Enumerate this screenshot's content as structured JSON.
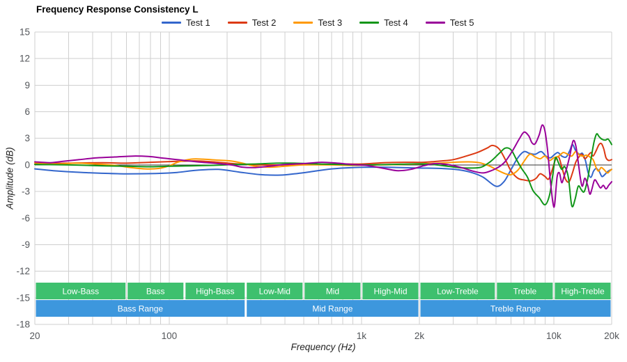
{
  "header": {
    "title": "Frequency Response Consistency L"
  },
  "axes": {
    "x": {
      "label": "Frequency (Hz)",
      "scale": "log",
      "min": 20,
      "max": 20000,
      "tick_labels": [
        {
          "value": 20,
          "text": "20"
        },
        {
          "value": 100,
          "text": "100"
        },
        {
          "value": 1000,
          "text": "1k"
        },
        {
          "value": 2000,
          "text": "2k"
        },
        {
          "value": 10000,
          "text": "10k"
        },
        {
          "value": 20000,
          "text": "20k"
        }
      ]
    },
    "y": {
      "label": "Amplitude (dB)",
      "min": -18,
      "max": 15,
      "tick_step": 3
    }
  },
  "chart_data": {
    "type": "line",
    "title": "Frequency Response Consistency L",
    "xlabel": "Frequency (Hz)",
    "ylabel": "Amplitude (dB)",
    "x_scale": "log",
    "xlim": [
      20,
      20000
    ],
    "ylim": [
      -18,
      15
    ],
    "grid": true,
    "legend_position": "top",
    "grid_color": "#cfcfcf",
    "zero_line_color": "#333333",
    "series": [
      {
        "name": "Test 1",
        "color": "#3366cc",
        "points": [
          [
            20,
            -0.45
          ],
          [
            25,
            -0.65
          ],
          [
            32,
            -0.8
          ],
          [
            40,
            -0.9
          ],
          [
            55,
            -1.0
          ],
          [
            70,
            -1.0
          ],
          [
            90,
            -0.95
          ],
          [
            110,
            -0.85
          ],
          [
            140,
            -0.6
          ],
          [
            180,
            -0.5
          ],
          [
            230,
            -0.8
          ],
          [
            300,
            -1.1
          ],
          [
            380,
            -1.15
          ],
          [
            450,
            -1.0
          ],
          [
            550,
            -0.75
          ],
          [
            700,
            -0.45
          ],
          [
            900,
            -0.3
          ],
          [
            1200,
            -0.25
          ],
          [
            1600,
            -0.3
          ],
          [
            2000,
            -0.35
          ],
          [
            2600,
            -0.4
          ],
          [
            3200,
            -0.55
          ],
          [
            3800,
            -0.9
          ],
          [
            4300,
            -1.4
          ],
          [
            5000,
            -2.4
          ],
          [
            5500,
            -1.9
          ],
          [
            6000,
            -0.5
          ],
          [
            6500,
            0.8
          ],
          [
            7000,
            1.5
          ],
          [
            7500,
            1.3
          ],
          [
            8000,
            1.2
          ],
          [
            8600,
            1.5
          ],
          [
            9100,
            1.0
          ],
          [
            9600,
            0.8
          ],
          [
            10000,
            1.1
          ],
          [
            10500,
            1.4
          ],
          [
            11000,
            1.0
          ],
          [
            11600,
            0.9
          ],
          [
            12100,
            1.6
          ],
          [
            12500,
            2.3
          ],
          [
            13000,
            1.6
          ],
          [
            13600,
            1.2
          ],
          [
            14100,
            1.3
          ],
          [
            14600,
            0.5
          ],
          [
            15100,
            -0.9
          ],
          [
            15600,
            -1.4
          ],
          [
            16100,
            -0.7
          ],
          [
            16600,
            -0.4
          ],
          [
            17200,
            -0.7
          ],
          [
            17800,
            -1.3
          ],
          [
            18400,
            -1.1
          ],
          [
            19200,
            -0.7
          ],
          [
            20000,
            -0.5
          ]
        ]
      },
      {
        "name": "Test 2",
        "color": "#dc3912",
        "points": [
          [
            20,
            0.1
          ],
          [
            30,
            0.2
          ],
          [
            45,
            0.25
          ],
          [
            60,
            0.2
          ],
          [
            80,
            0.3
          ],
          [
            110,
            0.4
          ],
          [
            140,
            0.45
          ],
          [
            180,
            0.3
          ],
          [
            230,
            0.1
          ],
          [
            300,
            0.0
          ],
          [
            400,
            0.0
          ],
          [
            550,
            0.05
          ],
          [
            750,
            0.1
          ],
          [
            1000,
            0.1
          ],
          [
            1300,
            0.25
          ],
          [
            1700,
            0.3
          ],
          [
            2100,
            0.3
          ],
          [
            2600,
            0.45
          ],
          [
            3000,
            0.6
          ],
          [
            3500,
            1.0
          ],
          [
            4000,
            1.4
          ],
          [
            4500,
            1.9
          ],
          [
            4800,
            2.2
          ],
          [
            5200,
            1.8
          ],
          [
            5600,
            0.6
          ],
          [
            6000,
            -0.7
          ],
          [
            6500,
            -1.5
          ],
          [
            7000,
            -1.7
          ],
          [
            7600,
            -1.8
          ],
          [
            8100,
            -1.5
          ],
          [
            8500,
            -1.0
          ],
          [
            9000,
            -1.3
          ],
          [
            9400,
            -1.6
          ],
          [
            9800,
            -0.6
          ],
          [
            10200,
            0.6
          ],
          [
            10600,
            0.9
          ],
          [
            11000,
            -0.2
          ],
          [
            11500,
            -1.6
          ],
          [
            12000,
            -1.9
          ],
          [
            12500,
            -0.9
          ],
          [
            13000,
            0.3
          ],
          [
            13500,
            0.9
          ],
          [
            14000,
            1.2
          ],
          [
            14500,
            0.7
          ],
          [
            15000,
            1.0
          ],
          [
            15600,
            1.4
          ],
          [
            16000,
            1.0
          ],
          [
            16600,
            1.6
          ],
          [
            17200,
            2.3
          ],
          [
            17700,
            2.4
          ],
          [
            18200,
            1.8
          ],
          [
            18700,
            0.8
          ],
          [
            19300,
            0.5
          ],
          [
            20000,
            0.6
          ]
        ]
      },
      {
        "name": "Test 3",
        "color": "#ff9900",
        "points": [
          [
            20,
            0.25
          ],
          [
            26,
            0.1
          ],
          [
            33,
            0.2
          ],
          [
            42,
            0.1
          ],
          [
            52,
            -0.05
          ],
          [
            63,
            -0.3
          ],
          [
            75,
            -0.45
          ],
          [
            88,
            -0.4
          ],
          [
            100,
            -0.1
          ],
          [
            112,
            0.35
          ],
          [
            130,
            0.65
          ],
          [
            150,
            0.65
          ],
          [
            175,
            0.55
          ],
          [
            210,
            0.45
          ],
          [
            240,
            0.2
          ],
          [
            280,
            -0.15
          ],
          [
            330,
            -0.25
          ],
          [
            400,
            -0.15
          ],
          [
            500,
            0.0
          ],
          [
            700,
            0.0
          ],
          [
            900,
            -0.05
          ],
          [
            1200,
            0.0
          ],
          [
            1600,
            0.05
          ],
          [
            2000,
            0.1
          ],
          [
            2500,
            0.2
          ],
          [
            3000,
            0.3
          ],
          [
            3600,
            0.35
          ],
          [
            4100,
            0.25
          ],
          [
            4600,
            -0.1
          ],
          [
            5100,
            -0.6
          ],
          [
            5600,
            -1.0
          ],
          [
            6000,
            -1.1
          ],
          [
            6500,
            -0.6
          ],
          [
            7000,
            0.4
          ],
          [
            7500,
            1.2
          ],
          [
            8000,
            0.9
          ],
          [
            8500,
            0.7
          ],
          [
            9000,
            1.0
          ],
          [
            9500,
            0.5
          ],
          [
            10000,
            0.8
          ],
          [
            10600,
            1.0
          ],
          [
            11200,
            1.4
          ],
          [
            11800,
            1.2
          ],
          [
            12400,
            1.0
          ],
          [
            13000,
            1.5
          ],
          [
            13600,
            1.1
          ],
          [
            14200,
            1.0
          ],
          [
            14800,
            1.1
          ],
          [
            15400,
            0.9
          ],
          [
            16000,
            0.6
          ],
          [
            16600,
            -0.3
          ],
          [
            17100,
            -0.7
          ],
          [
            17600,
            -0.3
          ],
          [
            18200,
            -0.5
          ],
          [
            19000,
            -0.9
          ],
          [
            19500,
            -0.7
          ],
          [
            20000,
            -0.5
          ]
        ]
      },
      {
        "name": "Test 4",
        "color": "#109618",
        "points": [
          [
            20,
            0.05
          ],
          [
            30,
            0.0
          ],
          [
            45,
            -0.1
          ],
          [
            60,
            -0.15
          ],
          [
            80,
            -0.2
          ],
          [
            100,
            -0.15
          ],
          [
            130,
            -0.1
          ],
          [
            170,
            -0.05
          ],
          [
            220,
            0.05
          ],
          [
            280,
            0.1
          ],
          [
            360,
            0.2
          ],
          [
            450,
            0.2
          ],
          [
            600,
            0.1
          ],
          [
            800,
            0.05
          ],
          [
            1000,
            0.0
          ],
          [
            1400,
            0.05
          ],
          [
            1800,
            0.1
          ],
          [
            2200,
            0.1
          ],
          [
            2700,
            -0.1
          ],
          [
            3200,
            -0.3
          ],
          [
            3700,
            -0.35
          ],
          [
            4200,
            -0.25
          ],
          [
            4700,
            0.4
          ],
          [
            5200,
            1.3
          ],
          [
            5600,
            1.9
          ],
          [
            6000,
            1.7
          ],
          [
            6400,
            0.6
          ],
          [
            6800,
            -0.4
          ],
          [
            7300,
            -1.4
          ],
          [
            7800,
            -2.9
          ],
          [
            8400,
            -3.7
          ],
          [
            9000,
            -4.5
          ],
          [
            9500,
            -3.4
          ],
          [
            9900,
            -1.0
          ],
          [
            10200,
            0.8
          ],
          [
            10600,
            0.2
          ],
          [
            11000,
            -0.5
          ],
          [
            11400,
            -0.2
          ],
          [
            11900,
            -1.4
          ],
          [
            12400,
            -4.6
          ],
          [
            12900,
            -3.9
          ],
          [
            13400,
            -2.4
          ],
          [
            13900,
            -2.8
          ],
          [
            14400,
            -3.0
          ],
          [
            15000,
            -1.6
          ],
          [
            15600,
            0.6
          ],
          [
            16200,
            2.6
          ],
          [
            16700,
            3.5
          ],
          [
            17200,
            3.2
          ],
          [
            17800,
            2.9
          ],
          [
            18500,
            2.8
          ],
          [
            19200,
            2.9
          ],
          [
            20000,
            2.3
          ]
        ]
      },
      {
        "name": "Test 5",
        "color": "#990099",
        "points": [
          [
            20,
            0.35
          ],
          [
            24,
            0.25
          ],
          [
            28,
            0.4
          ],
          [
            34,
            0.6
          ],
          [
            42,
            0.8
          ],
          [
            52,
            0.9
          ],
          [
            65,
            1.0
          ],
          [
            78,
            0.95
          ],
          [
            95,
            0.75
          ],
          [
            115,
            0.55
          ],
          [
            140,
            0.35
          ],
          [
            170,
            0.2
          ],
          [
            210,
            0.0
          ],
          [
            240,
            -0.25
          ],
          [
            280,
            -0.3
          ],
          [
            330,
            -0.15
          ],
          [
            400,
            0.05
          ],
          [
            500,
            0.15
          ],
          [
            620,
            0.3
          ],
          [
            750,
            0.2
          ],
          [
            900,
            0.05
          ],
          [
            1100,
            -0.1
          ],
          [
            1350,
            -0.45
          ],
          [
            1550,
            -0.65
          ],
          [
            1800,
            -0.5
          ],
          [
            2100,
            -0.1
          ],
          [
            2400,
            0.15
          ],
          [
            2800,
            0.05
          ],
          [
            3300,
            -0.3
          ],
          [
            3800,
            -0.7
          ],
          [
            4300,
            -0.9
          ],
          [
            4800,
            -0.6
          ],
          [
            5200,
            -0.2
          ],
          [
            5600,
            0.4
          ],
          [
            6100,
            1.6
          ],
          [
            6600,
            2.9
          ],
          [
            7000,
            3.7
          ],
          [
            7400,
            3.3
          ],
          [
            7700,
            2.5
          ],
          [
            8000,
            2.4
          ],
          [
            8400,
            3.4
          ],
          [
            8700,
            4.5
          ],
          [
            9000,
            3.8
          ],
          [
            9300,
            1.5
          ],
          [
            9600,
            -1.8
          ],
          [
            9900,
            -4.3
          ],
          [
            10100,
            -4.5
          ],
          [
            10400,
            -1.4
          ],
          [
            10700,
            -0.9
          ],
          [
            11000,
            -2.0
          ],
          [
            11300,
            -1.3
          ],
          [
            11700,
            -0.3
          ],
          [
            12100,
            1.0
          ],
          [
            12600,
            2.7
          ],
          [
            13000,
            2.2
          ],
          [
            13400,
            0.3
          ],
          [
            13800,
            -1.7
          ],
          [
            14100,
            -2.4
          ],
          [
            14500,
            -1.5
          ],
          [
            15000,
            -2.3
          ],
          [
            15400,
            -3.3
          ],
          [
            15800,
            -2.7
          ],
          [
            16300,
            -1.7
          ],
          [
            16900,
            -2.1
          ],
          [
            17500,
            -2.6
          ],
          [
            18100,
            -2.3
          ],
          [
            18700,
            -2.7
          ],
          [
            19300,
            -2.3
          ],
          [
            20000,
            -1.9
          ]
        ]
      }
    ],
    "bands": {
      "sub_color": "#3ec06e",
      "range_color": "#3d97dd",
      "sub_bands": [
        {
          "label": "Low-Bass",
          "from": 20,
          "to": 60
        },
        {
          "label": "Bass",
          "from": 60,
          "to": 120
        },
        {
          "label": "High-Bass",
          "from": 120,
          "to": 250
        },
        {
          "label": "Low-Mid",
          "from": 250,
          "to": 500
        },
        {
          "label": "Mid",
          "from": 500,
          "to": 1000
        },
        {
          "label": "High-Mid",
          "from": 1000,
          "to": 2000
        },
        {
          "label": "Low-Treble",
          "from": 2000,
          "to": 5000
        },
        {
          "label": "Treble",
          "from": 5000,
          "to": 10000
        },
        {
          "label": "High-Treble",
          "from": 10000,
          "to": 20000
        }
      ],
      "range_bands": [
        {
          "label": "Bass Range",
          "from": 20,
          "to": 250
        },
        {
          "label": "Mid Range",
          "from": 250,
          "to": 2000
        },
        {
          "label": "Treble Range",
          "from": 2000,
          "to": 20000
        }
      ]
    }
  }
}
